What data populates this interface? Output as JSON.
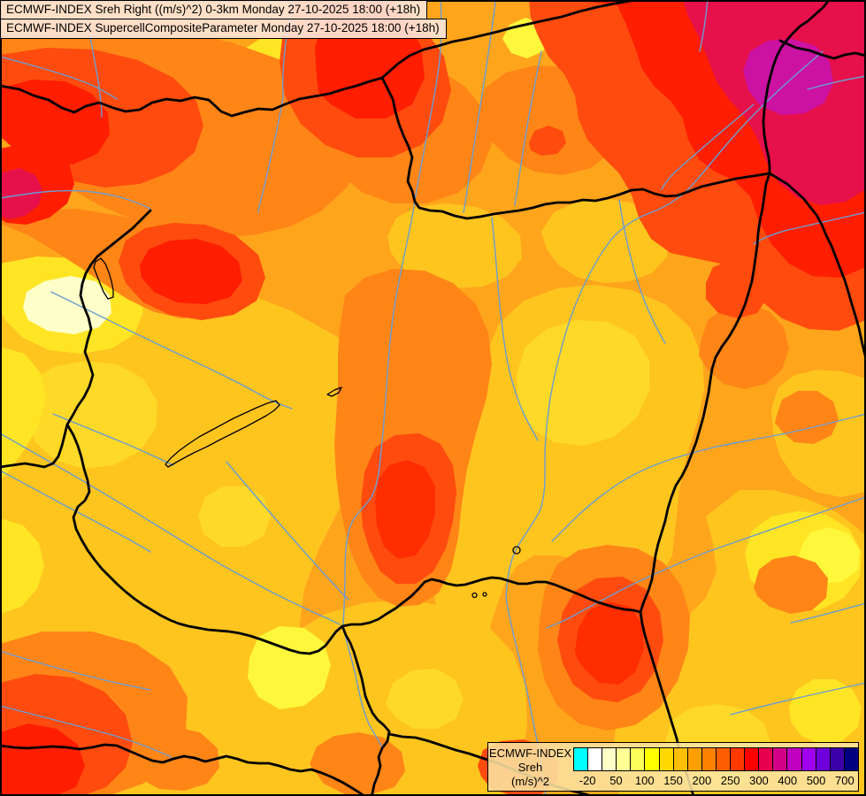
{
  "titles": {
    "line1": "ECMWF-INDEX Sreh Right ((m/s)^2) 0-3km Monday 27-10-2025 18:00 (+18h)",
    "line2": "ECMWF-INDEX SupercellCompositeParameter Monday 27-10-2025 18:00 (+18h)"
  },
  "legend": {
    "title": "ECMWF-INDEX",
    "param": "Sreh",
    "units": "(m/s)^2",
    "tick_labels": [
      "-20",
      "50",
      "100",
      "150",
      "200",
      "250",
      "300",
      "400",
      "500",
      "700"
    ],
    "colors": [
      "#00FFFF",
      "#FFFFFF",
      "#FFFFC8",
      "#FFFF96",
      "#FFFF5A",
      "#FFFF00",
      "#FFD800",
      "#FFBE00",
      "#FFA000",
      "#FF8200",
      "#FF5F00",
      "#FF3800",
      "#FF0000",
      "#E6004E",
      "#D20087",
      "#C000C0",
      "#A000F0",
      "#6E00DC",
      "#3C00AA",
      "#000080"
    ],
    "background": "#FCE3A2"
  },
  "map": {
    "base_color": "#FFA51C",
    "border_color": "#000000",
    "river_color": "#6B9CD0",
    "lake_outline_color": "#000000"
  }
}
